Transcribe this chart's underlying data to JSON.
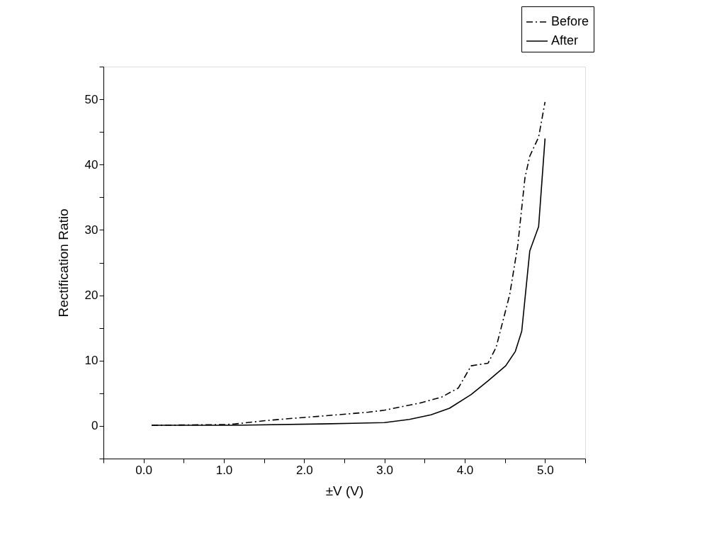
{
  "chart_data": {
    "type": "line",
    "xlabel": "±V (V)",
    "ylabel": "Rectification Ratio",
    "xlim": [
      -0.5,
      5.5
    ],
    "xticks": [
      {
        "value": -0.5,
        "label": null
      },
      {
        "value": 0,
        "label": "0.0"
      },
      {
        "value": 0.5,
        "label": null
      },
      {
        "value": 1,
        "label": "1.0"
      },
      {
        "value": 1.5,
        "label": null
      },
      {
        "value": 2,
        "label": "2.0"
      },
      {
        "value": 2.5,
        "label": null
      },
      {
        "value": 3,
        "label": "3.0"
      },
      {
        "value": 3.5,
        "label": null
      },
      {
        "value": 4,
        "label": "4.0"
      },
      {
        "value": 4.5,
        "label": null
      },
      {
        "value": 5,
        "label": "5.0"
      },
      {
        "value": 5.5,
        "label": null
      }
    ],
    "ylim": [
      -5,
      55
    ],
    "yticks": [
      {
        "value": -5,
        "label": null
      },
      0,
      {
        "value": 5,
        "label": null
      },
      10,
      {
        "value": 15,
        "label": null
      },
      20,
      {
        "value": 25,
        "label": null
      },
      30,
      {
        "value": 35,
        "label": null
      },
      40,
      {
        "value": 45,
        "label": null
      },
      50,
      {
        "value": 55,
        "label": null
      }
    ],
    "grid": false,
    "legend": "top right",
    "marker": "none",
    "series": [
      {
        "name": "Before",
        "color": "#000000",
        "line_style": "dashdot",
        "x": [
          0.1,
          1.0,
          1.14,
          1.51,
          2.0,
          2.22,
          2.8,
          3.0,
          3.44,
          3.71,
          3.92,
          4.08,
          4.29,
          4.39,
          4.56,
          4.66,
          4.75,
          4.81,
          4.92,
          5.0
        ],
        "values": [
          0.1,
          0.2,
          0.3,
          0.8,
          1.3,
          1.5,
          2.1,
          2.4,
          3.5,
          4.4,
          5.8,
          9.2,
          9.6,
          12.0,
          20.1,
          27.6,
          38.0,
          41.3,
          44.2,
          49.6
        ]
      },
      {
        "name": "After",
        "color": "#000000",
        "line_style": "solid",
        "x": [
          0.1,
          1.14,
          2.22,
          3.0,
          3.31,
          3.58,
          3.81,
          4.08,
          4.29,
          4.51,
          4.63,
          4.71,
          4.81,
          4.92,
          5.0
        ],
        "values": [
          0.1,
          0.1,
          0.3,
          0.5,
          1.0,
          1.7,
          2.7,
          4.8,
          6.9,
          9.2,
          11.4,
          14.5,
          26.8,
          30.5,
          44.0
        ]
      }
    ]
  }
}
